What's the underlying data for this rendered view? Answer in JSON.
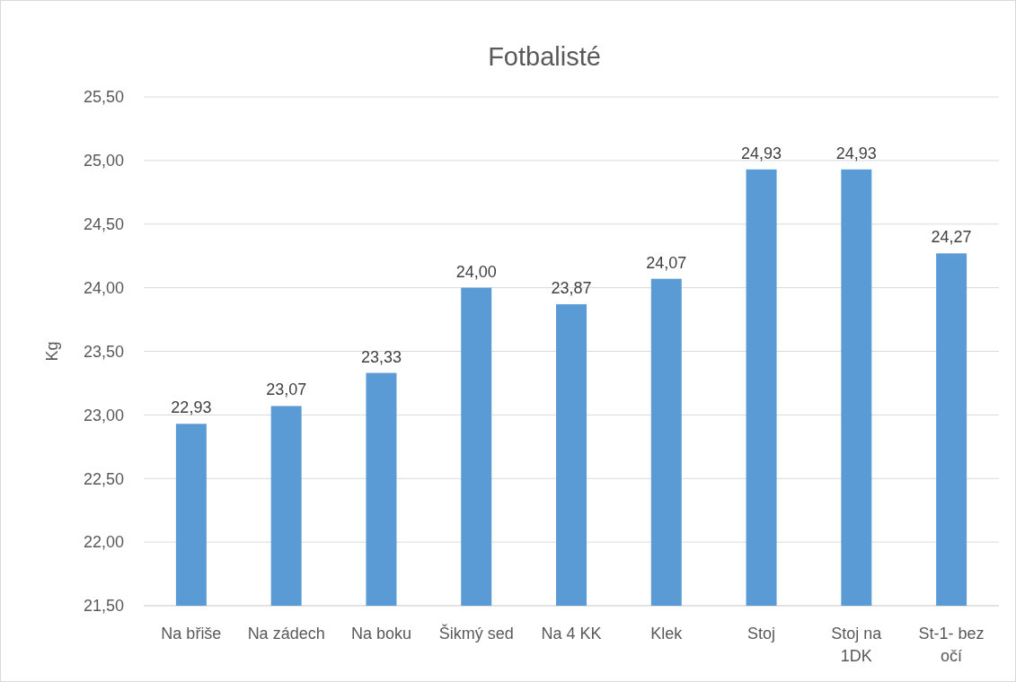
{
  "chart_data": {
    "type": "bar",
    "title": "Fotbalisté",
    "ylabel": "Kg",
    "categories": [
      "Na břiše",
      "Na zádech",
      "Na boku",
      "Šikmý sed",
      "Na 4 KK",
      "Klek",
      "Stoj",
      "Stoj na 1DK",
      "St-1- bez očí"
    ],
    "values": [
      22.93,
      23.07,
      23.33,
      24.0,
      23.87,
      24.07,
      24.93,
      24.93,
      24.27
    ],
    "value_labels": [
      "22,93",
      "23,07",
      "23,33",
      "24,00",
      "23,87",
      "24,07",
      "24,93",
      "24,93",
      "24,27"
    ],
    "color": "#5b9bd5",
    "ylim": [
      21.5,
      25.5
    ],
    "yticks": [
      {
        "value": 21.5,
        "label": "21,50"
      },
      {
        "value": 22,
        "label": "22,00"
      },
      {
        "value": 22.5,
        "label": "22,50"
      },
      {
        "value": 23,
        "label": "23,00"
      },
      {
        "value": 23.5,
        "label": "23,50"
      },
      {
        "value": 24,
        "label": "24,00"
      },
      {
        "value": 24.5,
        "label": "24,50"
      },
      {
        "value": 25,
        "label": "25,00"
      },
      {
        "value": 25.5,
        "label": "25,50"
      }
    ],
    "grid": true
  }
}
